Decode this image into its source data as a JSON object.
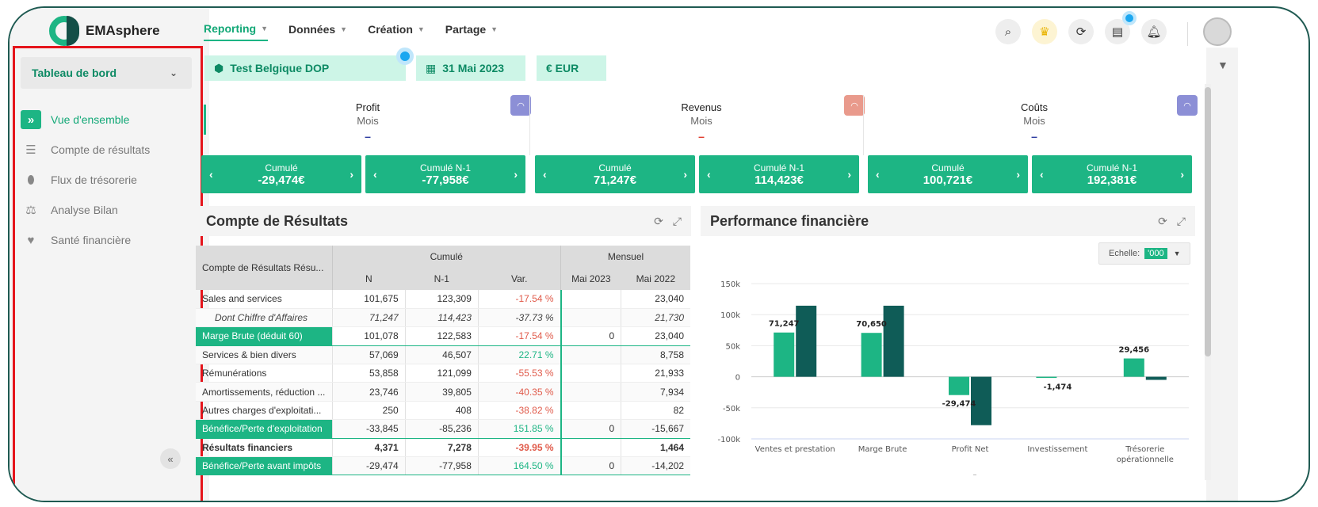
{
  "brand": "EMAsphere",
  "topnav": [
    {
      "label": "Reporting",
      "active": true
    },
    {
      "label": "Données"
    },
    {
      "label": "Création"
    },
    {
      "label": "Partage"
    }
  ],
  "sidebar": {
    "dashboard_select": "Tableau de bord",
    "items": [
      {
        "label": "Vue d'ensemble",
        "icon": "double-chevron-right-icon",
        "active": true
      },
      {
        "label": "Compte de résultats",
        "icon": "list-icon"
      },
      {
        "label": "Flux de trésorerie",
        "icon": "money-bag-icon"
      },
      {
        "label": "Analyse Bilan",
        "icon": "balance-scale-icon"
      },
      {
        "label": "Santé financière",
        "icon": "heart-pulse-icon"
      }
    ]
  },
  "filters": {
    "entity": "Test Belgique DOP",
    "date": "31 Mai 2023",
    "currency": "€ EUR"
  },
  "kpis": [
    {
      "title": "Profit",
      "period": "Mois",
      "dash": "–",
      "dash_color": "#2b3aa0",
      "gauge_color": "#8c8fd6",
      "buttons": [
        {
          "label": "Cumulé",
          "value": "-29,474€"
        },
        {
          "label": "Cumulé N-1",
          "value": "-77,958€"
        }
      ]
    },
    {
      "title": "Revenus",
      "period": "Mois",
      "dash": "–",
      "dash_color": "#e03a2b",
      "gauge_color": "#e99a8c",
      "buttons": [
        {
          "label": "Cumulé",
          "value": "71,247€"
        },
        {
          "label": "Cumulé N-1",
          "value": "114,423€"
        }
      ]
    },
    {
      "title": "Coûts",
      "period": "Mois",
      "dash": "–",
      "dash_color": "#2b3aa0",
      "gauge_color": "#8c8fd6",
      "buttons": [
        {
          "label": "Cumulé",
          "value": "100,721€"
        },
        {
          "label": "Cumulé N-1",
          "value": "192,381€"
        }
      ]
    }
  ],
  "pl_panel": {
    "title": "Compte de Résultats",
    "col_account": "Compte de Résultats Résu...",
    "group_cumule": "Cumulé",
    "group_mensuel": "Mensuel",
    "cols": [
      "N",
      "N-1",
      "Var.",
      "Mai 2023",
      "Mai 2022"
    ],
    "rows": [
      {
        "label": "Sales and services",
        "n": "101,675",
        "n1": "123,309",
        "var": "-17.54 %",
        "m23": "",
        "m22": "23,040",
        "style": ""
      },
      {
        "label": "Dont Chiffre d'Affaires",
        "n": "71,247",
        "n1": "114,423",
        "var": "-37.73 %",
        "m23": "",
        "m22": "21,730",
        "style": "it"
      },
      {
        "label": "Marge Brute (déduit 60)",
        "n": "101,078",
        "n1": "122,583",
        "var": "-17.54 %",
        "m23": "0",
        "m22": "23,040",
        "style": "hl"
      },
      {
        "label": "Services & bien divers",
        "n": "57,069",
        "n1": "46,507",
        "var": "22.71 %",
        "m23": "",
        "m22": "8,758",
        "style": ""
      },
      {
        "label": "Rémunérations",
        "n": "53,858",
        "n1": "121,099",
        "var": "-55.53 %",
        "m23": "",
        "m22": "21,933",
        "style": ""
      },
      {
        "label": "Amortissements, réduction ...",
        "n": "23,746",
        "n1": "39,805",
        "var": "-40.35 %",
        "m23": "",
        "m22": "7,934",
        "style": ""
      },
      {
        "label": "Autres charges d'exploitati...",
        "n": "250",
        "n1": "408",
        "var": "-38.82 %",
        "m23": "",
        "m22": "82",
        "style": ""
      },
      {
        "label": "Bénéfice/Perte d'exploitation",
        "n": "-33,845",
        "n1": "-85,236",
        "var": "151.85 %",
        "m23": "0",
        "m22": "-15,667",
        "style": "hl"
      },
      {
        "label": "Résultats financiers",
        "n": "4,371",
        "n1": "7,278",
        "var": "-39.95 %",
        "m23": "",
        "m22": "1,464",
        "style": "bold"
      },
      {
        "label": "Bénéfice/Perte avant impôts",
        "n": "-29,474",
        "n1": "-77,958",
        "var": "164.50 %",
        "m23": "0",
        "m22": "-14,202",
        "style": "hl"
      }
    ],
    "var_colors": {
      "negative": "#e05a4a",
      "positive": "#1db584"
    }
  },
  "perf_panel": {
    "title": "Performance financière",
    "scale_label": "Echelle:",
    "scale_value": "'000",
    "axis_ticks": [
      "150k",
      "100k",
      "50k",
      "0",
      "-50k",
      "-100k"
    ],
    "below_label": "–"
  },
  "chart_data": {
    "type": "bar",
    "title": "Performance financière",
    "xlabel": "",
    "ylabel": "",
    "ylim": [
      -100000,
      150000
    ],
    "categories": [
      "Ventes et prestation",
      "Marge Brute",
      "Profit Net",
      "Investissement",
      "Trésorerie opérationnelle"
    ],
    "series": [
      {
        "values": [
          71247,
          70650,
          -29474,
          -1474,
          29456
        ],
        "color": "#1db584"
      },
      {
        "values": [
          114423,
          114400,
          -77958,
          0,
          -5000
        ],
        "color": "#0f5c57"
      }
    ],
    "data_labels": [
      "71,247",
      "70,650",
      "-29,474",
      "-1,474",
      "29,456"
    ],
    "grid": true
  },
  "colors": {
    "accent": "#1db584",
    "dark": "#0f5c57",
    "highlight_box": "#e5141b"
  }
}
